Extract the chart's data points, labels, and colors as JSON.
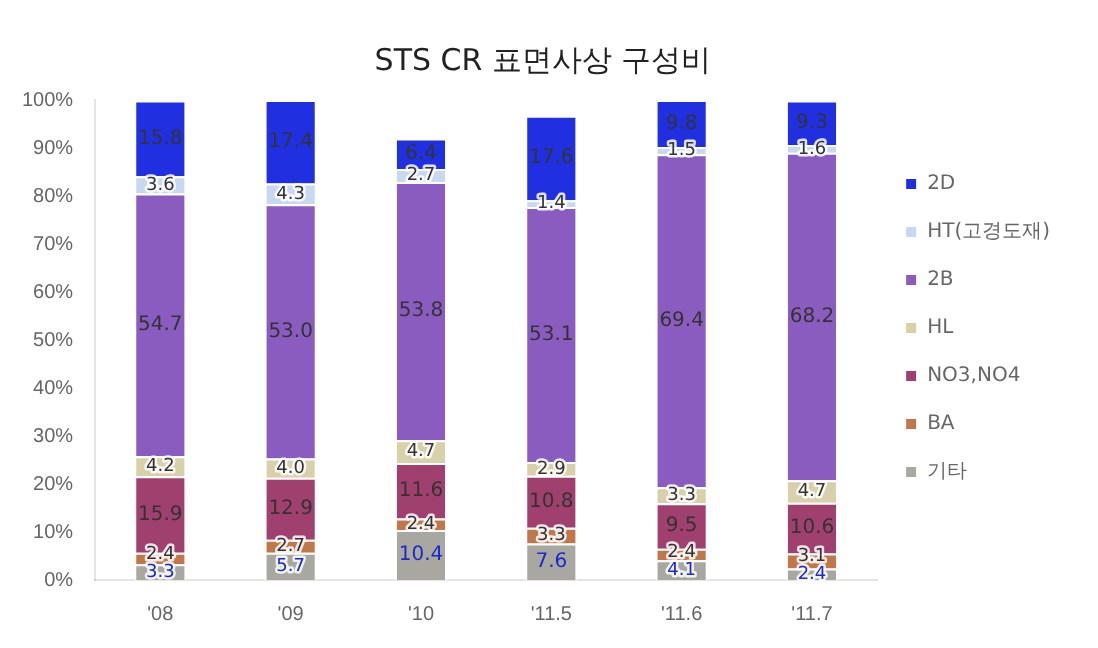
{
  "chart_data": {
    "type": "bar",
    "title": "STS CR 표면사상 구성비",
    "stacked": true,
    "categories": [
      "'08",
      "'09",
      "'10",
      "'11.5",
      "'11.6",
      "'11.7"
    ],
    "series": [
      {
        "name": "기타",
        "color": "#a8a8a0",
        "values": [
          3.3,
          5.7,
          10.4,
          7.6,
          4.1,
          2.4
        ],
        "value_labels": [
          "3.3",
          "5.7",
          "10.4",
          "7.6",
          "4.1",
          "2.4"
        ]
      },
      {
        "name": "BA",
        "color": "#c0784a",
        "values": [
          2.4,
          2.7,
          2.4,
          3.3,
          2.4,
          3.1
        ],
        "value_labels": [
          "2.4",
          "2.7",
          "2.4",
          "3.3",
          "2.4",
          "3.1"
        ]
      },
      {
        "name": "NO3,NO4",
        "color": "#a0406e",
        "values": [
          15.9,
          12.9,
          11.6,
          10.8,
          9.5,
          10.6
        ],
        "value_labels": [
          "15.9",
          "12.9",
          "11.6",
          "10.8",
          "9.5",
          "10.6"
        ]
      },
      {
        "name": "HL",
        "color": "#d8d0a8",
        "values": [
          4.2,
          4.0,
          4.7,
          2.9,
          3.3,
          4.7
        ],
        "value_labels": [
          "4.2",
          "4.0",
          "4.7",
          "2.9",
          "3.3",
          "4.7"
        ]
      },
      {
        "name": "2B",
        "color": "#8a5cc0",
        "values": [
          54.7,
          53.0,
          53.8,
          53.1,
          69.4,
          68.2
        ],
        "value_labels": [
          "54.7",
          "53.0",
          "53.8",
          "53.1",
          "69.4",
          "68.2"
        ]
      },
      {
        "name": "HT(고경도재)",
        "color": "#c8d8f0",
        "values": [
          3.6,
          4.3,
          2.7,
          1.4,
          1.5,
          1.6
        ],
        "value_labels": [
          "3.6",
          "4.3",
          "2.7",
          "1.4",
          "1.5",
          "1.6"
        ]
      },
      {
        "name": "2D",
        "color": "#2030e0",
        "values": [
          15.8,
          17.4,
          6.4,
          17.6,
          9.8,
          9.3
        ],
        "value_labels": [
          "15.8",
          "17.4",
          "6.4",
          "17.6",
          "9.8",
          "9.3"
        ]
      }
    ],
    "ylim": [
      0,
      100
    ],
    "yticks": [
      {
        "value": 0,
        "label": "0%"
      },
      {
        "value": 10,
        "label": "10%"
      },
      {
        "value": 20,
        "label": "20%"
      },
      {
        "value": 30,
        "label": "30%"
      },
      {
        "value": 40,
        "label": "40%"
      },
      {
        "value": 50,
        "label": "50%"
      },
      {
        "value": 60,
        "label": "60%"
      },
      {
        "value": 70,
        "label": "70%"
      },
      {
        "value": 80,
        "label": "80%"
      },
      {
        "value": 90,
        "label": "90%"
      },
      {
        "value": 100,
        "label": "100%"
      }
    ],
    "grid": false,
    "legend": "right"
  }
}
